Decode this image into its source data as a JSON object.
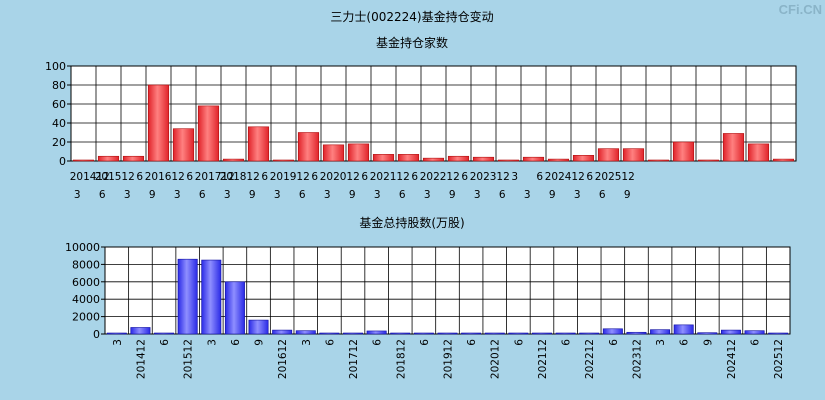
{
  "page_title": "三力士(002224)基金持仓变动",
  "watermark": "CFi.CN",
  "colors": {
    "background": "#a9d4e8",
    "plot_bg": "#ffffff",
    "grid": "#000000",
    "bar_red": "#e0242a",
    "bar_blue": "#2a2ae6"
  },
  "chart_data": [
    {
      "type": "bar",
      "title": "基金持仓家数",
      "ylim": [
        0,
        100
      ],
      "yticks": [
        0,
        20,
        40,
        60,
        80,
        100
      ],
      "xticks_row1": [
        "",
        "201412",
        "",
        "201512",
        "",
        "6",
        "",
        "201612",
        "",
        "6",
        "",
        "201712",
        "",
        "201812",
        "",
        "6",
        "",
        "201912",
        "",
        "6",
        "",
        "202012",
        "",
        "6",
        "",
        "202112",
        "",
        "6",
        "",
        "202212",
        "",
        "6",
        "",
        "202312",
        "",
        "3",
        "",
        "6",
        "",
        "202412",
        "",
        "6",
        "",
        "202512",
        ""
      ],
      "xticks_row2": [
        "3",
        "",
        "6",
        "",
        "3",
        "",
        "9",
        "",
        "3",
        "",
        "6",
        "",
        "3",
        "",
        "9",
        "",
        "3",
        "",
        "6",
        "",
        "3",
        "",
        "9",
        "",
        "3",
        "",
        "6",
        "",
        "3",
        "",
        "9",
        "",
        "3",
        "",
        "6",
        "",
        "3",
        "",
        "9",
        "",
        "3",
        "",
        "6",
        "",
        "9"
      ],
      "categories_count": 29,
      "values": [
        1,
        5,
        5,
        80,
        34,
        58,
        2,
        36,
        1,
        30,
        17,
        18,
        7,
        7,
        3,
        5,
        4,
        1,
        4,
        2,
        6,
        13,
        13,
        1,
        20,
        1,
        29,
        18,
        2
      ]
    },
    {
      "type": "bar",
      "title": "基金总持股数(万股)",
      "ylim": [
        0,
        10000
      ],
      "yticks": [
        0,
        2000,
        4000,
        6000,
        8000,
        10000
      ],
      "xticks": [
        "3",
        "201412",
        "6",
        "201512",
        "3",
        "6",
        "9",
        "201612",
        "3",
        "6",
        "201712",
        "6",
        "201812",
        "6",
        "201912",
        "6",
        "202012",
        "6",
        "202112",
        "6",
        "202212",
        "6",
        "202312",
        "3",
        "6",
        "9",
        "202412",
        "6",
        "202512"
      ],
      "values": [
        60,
        750,
        80,
        8600,
        8500,
        6000,
        1600,
        450,
        380,
        60,
        60,
        350,
        50,
        50,
        40,
        40,
        30,
        30,
        40,
        30,
        40,
        600,
        200,
        500,
        1050,
        150,
        450,
        380,
        60
      ]
    }
  ]
}
